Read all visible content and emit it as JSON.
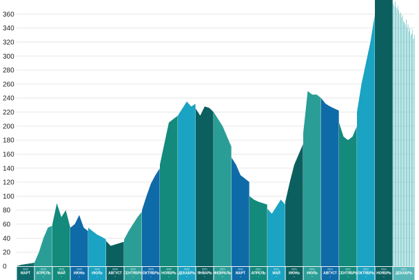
{
  "chart_data": {
    "type": "area",
    "ylim": [
      0,
      380
    ],
    "yticks": [
      0,
      20,
      40,
      60,
      80,
      100,
      120,
      140,
      160,
      180,
      200,
      220,
      240,
      260,
      280,
      300,
      320,
      340,
      360
    ],
    "grid": false,
    "palette": [
      "#0f6b6b",
      "#2a9e96",
      "#1aa3c2",
      "#138a7b",
      "#0f6aa8",
      "#0c5f5f"
    ],
    "segments": [
      {
        "year": "2020",
        "month": "МАРТ",
        "count": "",
        "color": "#0f6b6b",
        "values": [
          0,
          2,
          3,
          4,
          5
        ]
      },
      {
        "year": "2020",
        "month": "АПРЕЛЬ",
        "count": "*",
        "color": "#2a9e96",
        "values": [
          5,
          20,
          40,
          55,
          58
        ]
      },
      {
        "year": "2020",
        "month": "МАЙ",
        "count": "*",
        "color": "#138a7b",
        "values": [
          60,
          90,
          70,
          80,
          55
        ]
      },
      {
        "year": "2020",
        "month": "ИЮНЬ",
        "count": "*",
        "color": "#0f6aa8",
        "values": [
          55,
          60,
          73,
          55,
          50
        ]
      },
      {
        "year": "2020",
        "month": "ИЮЛЬ",
        "count": "*",
        "color": "#1aa3c2",
        "values": [
          55,
          50,
          45,
          42,
          38
        ]
      },
      {
        "year": "2020",
        "month": "АВГУСТ",
        "count": "*",
        "color": "#0c5f5f",
        "values": [
          36,
          29,
          31,
          33,
          35
        ]
      },
      {
        "year": "2020",
        "month": "СЕНТЯБРЬ",
        "count": "*",
        "color": "#2a9e96",
        "values": [
          38,
          50,
          60,
          70,
          78
        ]
      },
      {
        "year": "2020",
        "month": "ОКТЯБРЬ",
        "count": "*",
        "color": "#0f6aa8",
        "values": [
          80,
          100,
          118,
          130,
          140
        ]
      },
      {
        "year": "2020",
        "month": "НОЯБРЬ",
        "count": "*",
        "color": "#138a7b",
        "values": [
          145,
          175,
          205,
          210,
          215
        ]
      },
      {
        "year": "2020",
        "month": "ДЕКАБРЬ",
        "count": "*",
        "color": "#1aa3c2",
        "values": [
          215,
          225,
          235,
          228,
          232
        ]
      },
      {
        "year": "2021",
        "month": "ЯНВАРЬ",
        "count": "*",
        "color": "#0c5f5f",
        "values": [
          225,
          215,
          228,
          226,
          220
        ]
      },
      {
        "year": "2021",
        "month": "ФЕВРАЛЬ",
        "count": "*",
        "color": "#2a9e96",
        "values": [
          220,
          210,
          200,
          185,
          170
        ]
      },
      {
        "year": "2021",
        "month": "МАРТ",
        "count": "*",
        "color": "#0f6aa8",
        "values": [
          155,
          145,
          130,
          125,
          120
        ]
      },
      {
        "year": "2021",
        "month": "АПРЕЛЬ",
        "count": "*",
        "color": "#138a7b",
        "values": [
          100,
          95,
          92,
          90,
          88
        ]
      },
      {
        "year": "2021",
        "month": "МАЙ",
        "count": "*",
        "color": "#1aa3c2",
        "values": [
          82,
          75,
          85,
          95,
          88
        ]
      },
      {
        "year": "2021",
        "month": "ИЮНЬ",
        "count": "*",
        "color": "#0c5f5f",
        "values": [
          92,
          120,
          145,
          160,
          175
        ]
      },
      {
        "year": "2021",
        "month": "ИЮЛЬ",
        "count": "*",
        "color": "#2a9e96",
        "values": [
          190,
          250,
          245,
          245,
          240
        ]
      },
      {
        "year": "2021",
        "month": "АВГУСТ",
        "count": "*",
        "color": "#0f6aa8",
        "values": [
          240,
          232,
          228,
          225,
          222
        ]
      },
      {
        "year": "2021",
        "month": "СЕНТЯБРЬ",
        "count": "*",
        "color": "#138a7b",
        "values": [
          205,
          185,
          180,
          185,
          200
        ]
      },
      {
        "year": "2021",
        "month": "ОКТЯБРЬ",
        "count": "*",
        "color": "#1aa3c2",
        "values": [
          220,
          260,
          290,
          320,
          360
        ]
      },
      {
        "year": "2021",
        "month": "НОЯБРЬ",
        "count": "*",
        "color": "#0c5f5f",
        "values": [
          380,
          380,
          380,
          380,
          380
        ]
      },
      {
        "year": "2021",
        "month": "ДЕКАБРЬ",
        "count": "",
        "color": "#5bb8ba",
        "values": [
          375,
          372,
          378,
          370,
          368,
          372,
          365,
          360,
          362,
          355,
          358,
          350,
          348,
          345,
          352,
          340,
          345,
          335,
          340,
          330,
          332,
          338,
          325,
          330
        ]
      }
    ]
  }
}
